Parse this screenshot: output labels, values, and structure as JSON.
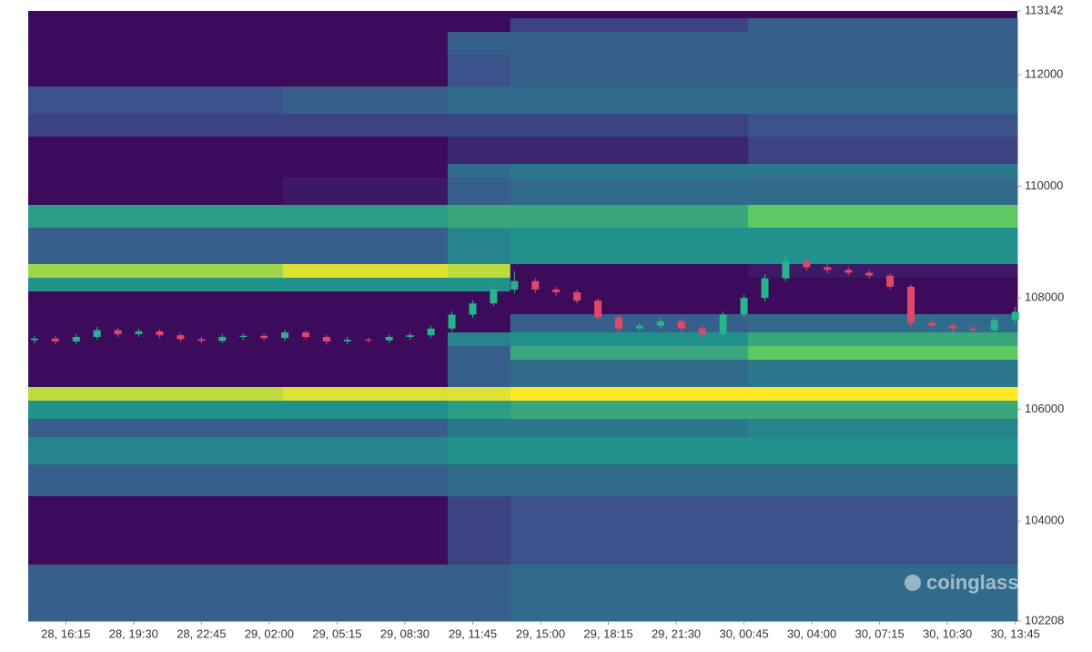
{
  "chart_data": {
    "type": "heatmap-candlestick",
    "watermark": "coinglass",
    "xlim": [
      -1.8,
      45.6
    ],
    "xticks": [
      {
        "value": 0,
        "label": "28, 16:15"
      },
      {
        "value": 3.25,
        "label": "28, 19:30"
      },
      {
        "value": 6.5,
        "label": "28, 22:45"
      },
      {
        "value": 9.75,
        "label": "29, 02:00"
      },
      {
        "value": 13,
        "label": "29, 05:15"
      },
      {
        "value": 16.25,
        "label": "29, 08:30"
      },
      {
        "value": 19.5,
        "label": "29, 11:45"
      },
      {
        "value": 22.75,
        "label": "29, 15:00"
      },
      {
        "value": 26,
        "label": "29, 18:15"
      },
      {
        "value": 29.25,
        "label": "29, 21:30"
      },
      {
        "value": 32.5,
        "label": "30, 00:45"
      },
      {
        "value": 35.75,
        "label": "30, 04:00"
      },
      {
        "value": 39,
        "label": "30, 07:15"
      },
      {
        "value": 42.25,
        "label": "30, 10:30"
      },
      {
        "value": 45.5,
        "label": "30, 13:45"
      }
    ],
    "ylim": [
      102208,
      113142
    ],
    "yticks": [
      102208,
      104000,
      106000,
      108000,
      110000,
      112000,
      113142
    ],
    "colorscale": [
      "#3d0b5b",
      "#3b528b",
      "#21918c",
      "#5ec962",
      "#fde725"
    ],
    "up_color": "#26b58a",
    "down_color": "#e0476a",
    "heatmap": {
      "x_edges": [
        -1.8,
        10.4,
        18.3,
        21.3,
        32.7,
        45.6
      ],
      "rows": [
        {
          "low": 112766,
          "high": 113011,
          "values": [
            0,
            0,
            0,
            0.2,
            0.3
          ]
        },
        {
          "low": 112358,
          "high": 112766,
          "values": [
            0,
            0,
            0.3,
            0.3,
            0.3
          ]
        },
        {
          "low": 111787,
          "high": 112358,
          "values": [
            0,
            0,
            0.25,
            0.3,
            0.3
          ]
        },
        {
          "low": 111297,
          "high": 111787,
          "values": [
            0.25,
            0.3,
            0.35,
            0.35,
            0.35
          ]
        },
        {
          "low": 110889,
          "high": 111297,
          "values": [
            0.2,
            0.2,
            0.2,
            0.2,
            0.25
          ]
        },
        {
          "low": 110400,
          "high": 110889,
          "values": [
            0,
            0,
            0.1,
            0.1,
            0.2
          ]
        },
        {
          "low": 110155,
          "high": 110400,
          "values": [
            0,
            0,
            0.35,
            0.4,
            0.4
          ]
        },
        {
          "low": 109666,
          "high": 110155,
          "values": [
            0,
            0.05,
            0.3,
            0.35,
            0.35
          ]
        },
        {
          "low": 109258,
          "high": 109666,
          "values": [
            0.55,
            0.55,
            0.6,
            0.6,
            0.75
          ]
        },
        {
          "low": 108605,
          "high": 109258,
          "values": [
            0.3,
            0.3,
            0.45,
            0.5,
            0.5
          ]
        },
        {
          "low": 108360,
          "high": 108605,
          "values": [
            0.85,
            0.95,
            0.9,
            0,
            0.05
          ]
        },
        {
          "low": 108115,
          "high": 108360,
          "values": [
            0.5,
            0.5,
            0.5,
            0,
            0
          ]
        },
        {
          "low": 107707,
          "high": 108115,
          "values": [
            0,
            0,
            0,
            0,
            0
          ]
        },
        {
          "low": 107381,
          "high": 107707,
          "values": [
            0,
            0,
            0,
            0.3,
            0.35
          ]
        },
        {
          "low": 107136,
          "high": 107381,
          "values": [
            0,
            0,
            0.45,
            0.5,
            0.6
          ]
        },
        {
          "low": 106891,
          "high": 107136,
          "values": [
            0,
            0,
            0.3,
            0.6,
            0.75
          ]
        },
        {
          "low": 106402,
          "high": 106891,
          "values": [
            0,
            0,
            0.3,
            0.35,
            0.4
          ]
        },
        {
          "low": 106157,
          "high": 106402,
          "values": [
            0.9,
            0.95,
            0.95,
            1,
            1
          ]
        },
        {
          "low": 105831,
          "high": 106157,
          "values": [
            0.5,
            0.5,
            0.55,
            0.6,
            0.6
          ]
        },
        {
          "low": 105504,
          "high": 105831,
          "values": [
            0.3,
            0.3,
            0.4,
            0.4,
            0.45
          ]
        },
        {
          "low": 105015,
          "high": 105504,
          "values": [
            0.45,
            0.45,
            0.5,
            0.5,
            0.5
          ]
        },
        {
          "low": 104444,
          "high": 105015,
          "values": [
            0.3,
            0.3,
            0.35,
            0.35,
            0.35
          ]
        },
        {
          "low": 103220,
          "high": 104444,
          "values": [
            0,
            0,
            0.2,
            0.25,
            0.25
          ]
        },
        {
          "low": 102208,
          "high": 103220,
          "values": [
            0.3,
            0.3,
            0.3,
            0.35,
            0.35
          ]
        }
      ]
    },
    "candles": {
      "x": [
        -1.5,
        -0.5,
        0.5,
        1.5,
        2.5,
        3.5,
        4.5,
        5.5,
        6.5,
        7.5,
        8.5,
        9.5,
        10.5,
        11.5,
        12.5,
        13.5,
        14.5,
        15.5,
        16.5,
        17.5,
        18.5,
        19.5,
        20.5,
        21.5,
        22.5,
        23.5,
        24.5,
        25.5,
        26.5,
        27.5,
        28.5,
        29.5,
        30.5,
        31.5,
        32.5,
        33.5,
        34.5,
        35.5,
        36.5,
        37.5,
        38.5,
        39.5,
        40.5,
        41.5,
        42.5,
        43.5,
        44.5,
        45.5
      ],
      "open": [
        107240,
        107270,
        107220,
        107300,
        107420,
        107350,
        107400,
        107330,
        107260,
        107230,
        107300,
        107320,
        107280,
        107380,
        107300,
        107220,
        107250,
        107240,
        107300,
        107330,
        107450,
        107700,
        107900,
        108150,
        108300,
        108150,
        108100,
        107950,
        107650,
        107450,
        107500,
        107580,
        107450,
        107350,
        107700,
        108000,
        108350,
        108650,
        108550,
        108500,
        108450,
        108400,
        108200,
        107550,
        107500,
        107450,
        107420,
        107600
      ],
      "high": [
        107320,
        107310,
        107350,
        107480,
        107470,
        107450,
        107440,
        107380,
        107300,
        107350,
        107370,
        107360,
        107430,
        107420,
        107340,
        107300,
        107290,
        107340,
        107380,
        107500,
        107760,
        107960,
        108220,
        108480,
        108350,
        108200,
        108150,
        108000,
        107700,
        107560,
        107640,
        107620,
        107500,
        107760,
        108060,
        108420,
        108760,
        108720,
        108600,
        108550,
        108500,
        108440,
        108240,
        107610,
        107550,
        107500,
        107660,
        107840
      ],
      "low": [
        107180,
        107170,
        107180,
        107250,
        107300,
        107300,
        107280,
        107210,
        107180,
        107190,
        107250,
        107230,
        107230,
        107250,
        107160,
        107170,
        107190,
        107190,
        107250,
        107280,
        107400,
        107640,
        107850,
        108080,
        108090,
        108040,
        107900,
        107590,
        107380,
        107390,
        107450,
        107390,
        107280,
        107290,
        107640,
        107940,
        108290,
        108490,
        108440,
        108400,
        108350,
        108150,
        107480,
        107440,
        107380,
        107350,
        107370,
        107540
      ],
      "close": [
        107270,
        107220,
        107300,
        107420,
        107350,
        107400,
        107330,
        107260,
        107230,
        107300,
        107320,
        107280,
        107380,
        107300,
        107220,
        107250,
        107240,
        107300,
        107330,
        107450,
        107700,
        107900,
        108150,
        108300,
        108150,
        108100,
        107950,
        107650,
        107450,
        107500,
        107580,
        107450,
        107350,
        107700,
        108000,
        108350,
        108650,
        108550,
        108500,
        108450,
        108400,
        108200,
        107550,
        107500,
        107450,
        107420,
        107600,
        107750
      ]
    }
  }
}
